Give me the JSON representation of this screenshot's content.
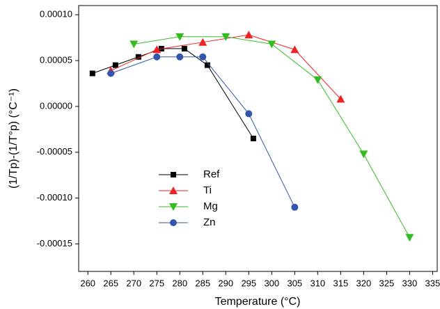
{
  "chart_data": {
    "type": "line",
    "x_label": "Temperature (°C)",
    "y_label": "(1/Tp)-(1/T°p) (°C⁻¹)",
    "xlim": [
      258,
      336
    ],
    "xticks": [
      260,
      265,
      270,
      275,
      280,
      285,
      290,
      295,
      300,
      305,
      310,
      315,
      320,
      325,
      330,
      335
    ],
    "ylim": [
      -0.00018,
      0.00011
    ],
    "yticks": [
      {
        "value": 0.0001,
        "label": "0.00010"
      },
      {
        "value": 5e-05,
        "label": "0.00005"
      },
      {
        "value": 0,
        "label": "0.00000"
      },
      {
        "value": -5e-05,
        "label": "-0.00005"
      },
      {
        "value": -0.0001,
        "label": "-0.00010"
      },
      {
        "value": -0.00015,
        "label": "-0.00015"
      }
    ],
    "series": [
      {
        "name": "Ref",
        "color": "#000000",
        "marker": "square",
        "x": [
          261,
          266,
          271,
          276,
          281,
          286,
          296
        ],
        "values": [
          3.6e-05,
          4.5e-05,
          5.4e-05,
          6.3e-05,
          6.3e-05,
          4.5e-05,
          -3.5e-05
        ]
      },
      {
        "name": "Ti",
        "color": "#ee2222",
        "marker": "triangle-up",
        "x": [
          265,
          275,
          285,
          295,
          305,
          315
        ],
        "values": [
          3.9e-05,
          6.2e-05,
          7e-05,
          7.8e-05,
          6.2e-05,
          8e-06
        ]
      },
      {
        "name": "Mg",
        "color": "#33bb22",
        "marker": "triangle-down",
        "x": [
          270,
          280,
          290,
          300,
          310,
          320,
          330
        ],
        "values": [
          6.8e-05,
          7.6e-05,
          7.6e-05,
          6.8e-05,
          2.9e-05,
          -5.2e-05,
          -0.000143
        ]
      },
      {
        "name": "Zn",
        "color": "#3355aa",
        "marker": "circle",
        "x": [
          265,
          275,
          280,
          285,
          295,
          305
        ],
        "values": [
          3.6e-05,
          5.4e-05,
          5.4e-05,
          5.4e-05,
          -8e-06,
          -0.00011
        ]
      }
    ]
  }
}
